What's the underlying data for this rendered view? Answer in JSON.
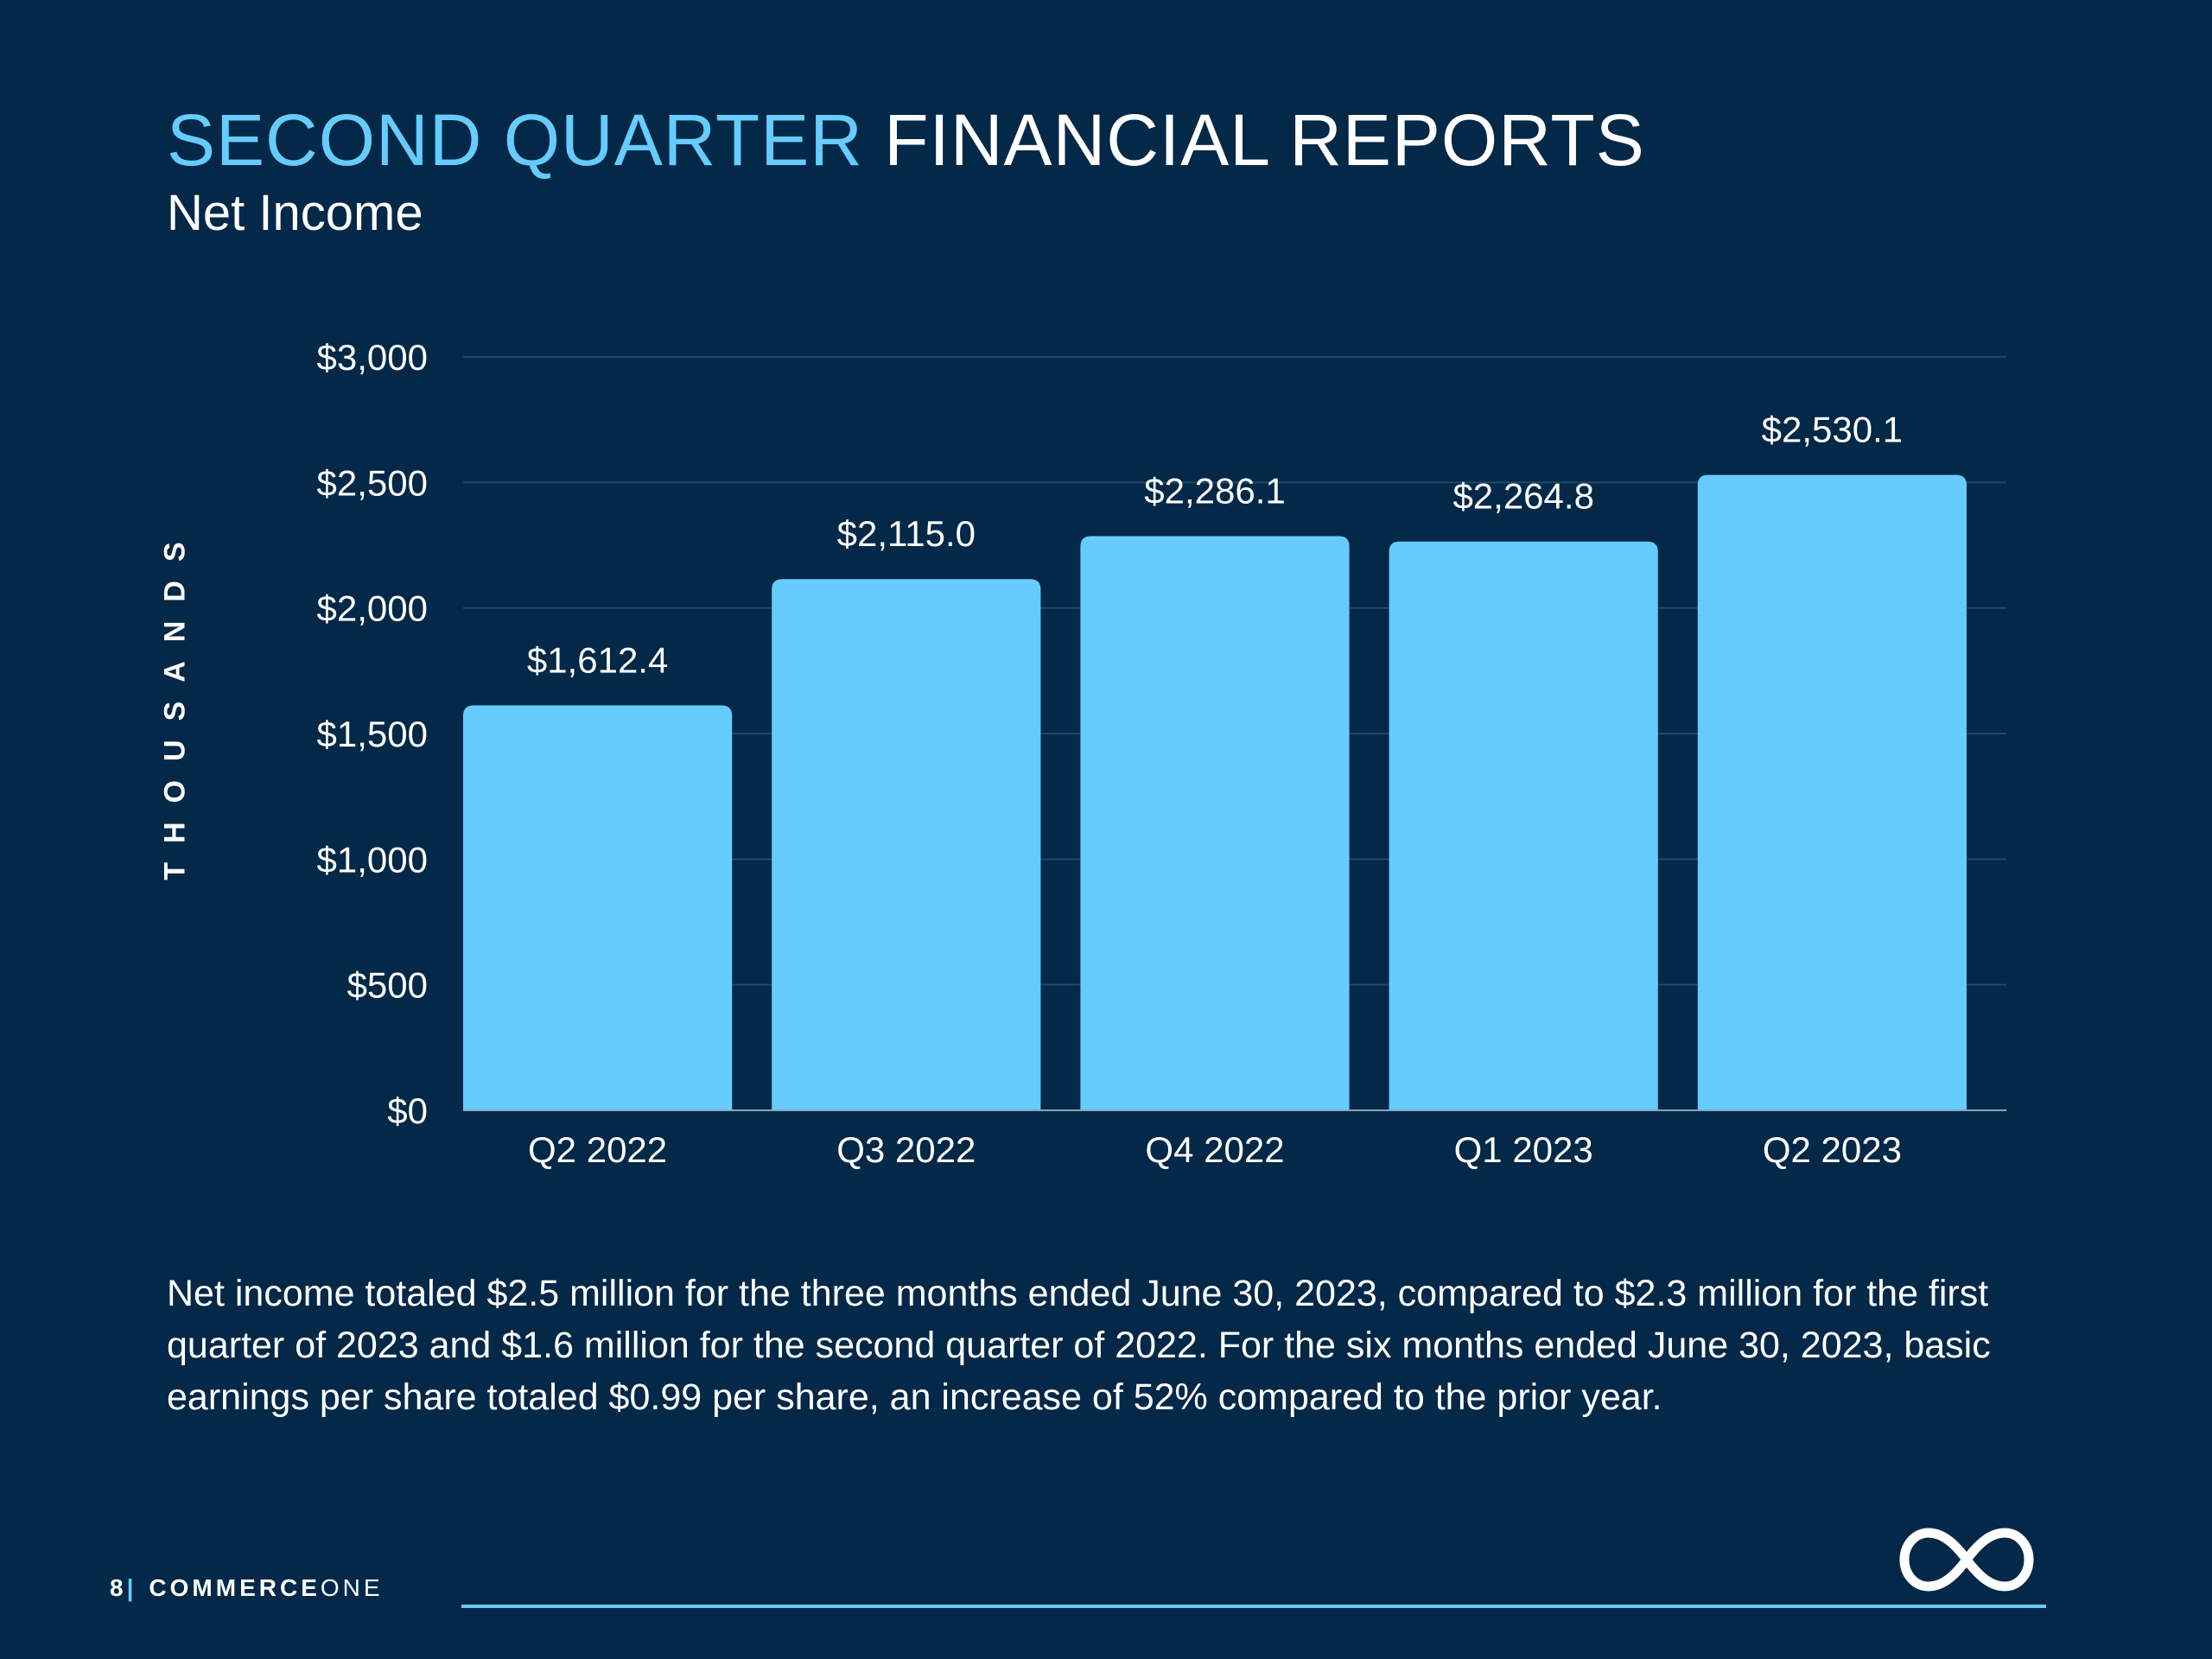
{
  "header": {
    "title_accent": "SECOND QUARTER",
    "title_main": "FINANCIAL REPORTS",
    "subtitle": "Net Income"
  },
  "chart_data": {
    "type": "bar",
    "title": "Net Income",
    "ylabel": "THOUSANDS",
    "xlabel": "",
    "categories": [
      "Q2 2022",
      "Q3 2022",
      "Q4 2022",
      "Q1 2023",
      "Q2 2023"
    ],
    "values": [
      1612.4,
      2115.0,
      2286.1,
      2264.8,
      2530.1
    ],
    "value_labels": [
      "$1,612.4",
      "$2,115.0",
      "$2,286.1",
      "$2,264.8",
      "$2,530.1"
    ],
    "ylim": [
      0,
      3000
    ],
    "yticks": [
      0,
      500,
      1000,
      1500,
      2000,
      2500,
      3000
    ],
    "ytick_labels": [
      "$0",
      "$500",
      "$1,000",
      "$1,500",
      "$2,000",
      "$2,500",
      "$3,000"
    ],
    "grid": true,
    "legend": "none",
    "bar_color": "#66ccff",
    "grid_color": "#1e4a66"
  },
  "body": {
    "paragraph": "Net income totaled $2.5 million for the three months ended June 30, 2023, compared to $2.3 million for the first quarter of 2023 and $1.6 million for the second quarter of 2022. For the six months ended June 30, 2023, basic earnings per share totaled $0.99 per share, an increase of 52% compared to the prior year."
  },
  "footer": {
    "page_number": "8",
    "separator": "|",
    "brand_bold": "COMMERCE",
    "brand_light": "ONE",
    "logo_icon": "infinity-icon"
  },
  "colors": {
    "background": "#042848",
    "accent": "#66ccff",
    "text": "#ffffff"
  }
}
